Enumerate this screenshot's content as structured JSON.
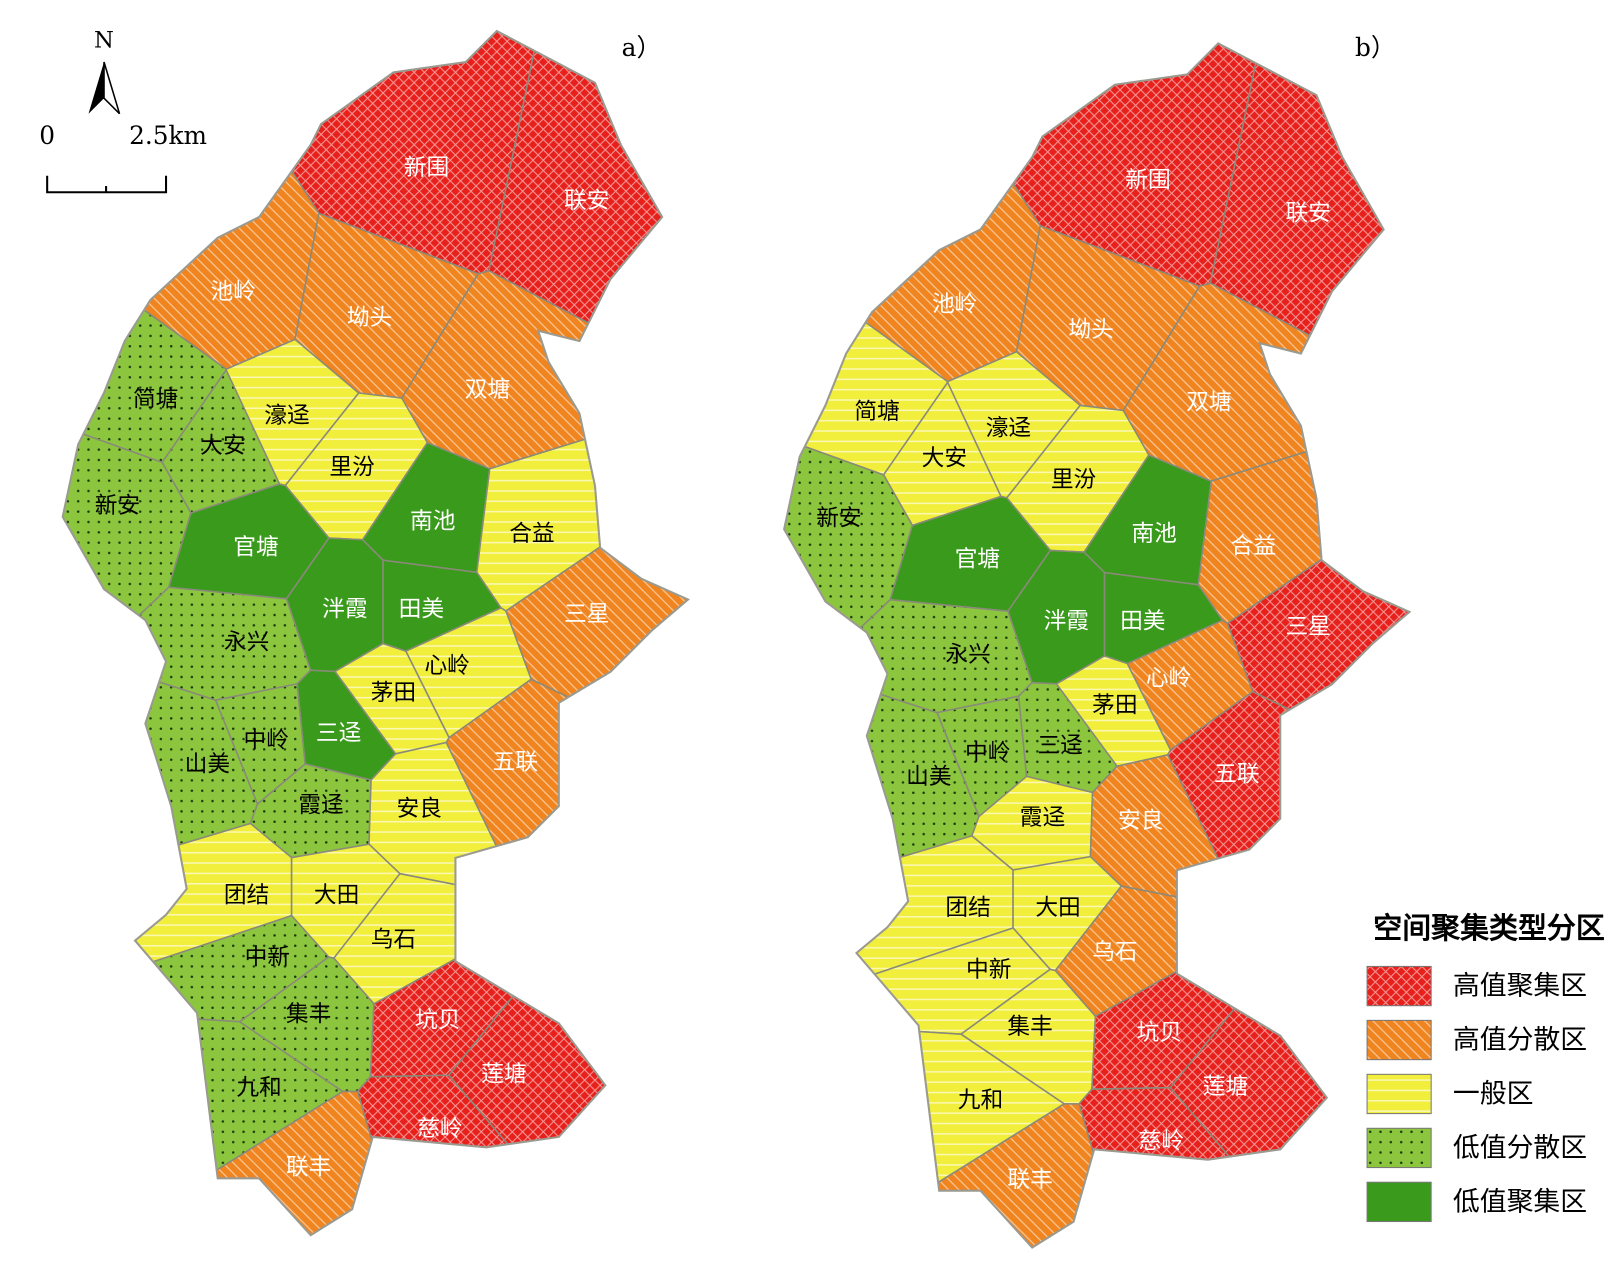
{
  "north": "N",
  "scale": {
    "start": "0",
    "end": "2.5km"
  },
  "panels": [
    {
      "label": "a）",
      "regions": [
        {
          "name": "新围",
          "zone": "高值聚集区"
        },
        {
          "name": "联安",
          "zone": "高值聚集区"
        },
        {
          "name": "池岭",
          "zone": "高值分散区"
        },
        {
          "name": "坳头",
          "zone": "高值分散区"
        },
        {
          "name": "双塘",
          "zone": "高值分散区"
        },
        {
          "name": "简塘",
          "zone": "低值分散区"
        },
        {
          "name": "濠迳",
          "zone": "一般区"
        },
        {
          "name": "大安",
          "zone": "低值分散区"
        },
        {
          "name": "里汾",
          "zone": "一般区"
        },
        {
          "name": "新安",
          "zone": "低值分散区"
        },
        {
          "name": "官塘",
          "zone": "低值聚集区"
        },
        {
          "name": "南池",
          "zone": "低值聚集区"
        },
        {
          "name": "合益",
          "zone": "一般区"
        },
        {
          "name": "泮霞",
          "zone": "低值聚集区"
        },
        {
          "name": "田美",
          "zone": "低值聚集区"
        },
        {
          "name": "三星",
          "zone": "高值分散区"
        },
        {
          "name": "永兴",
          "zone": "低值分散区"
        },
        {
          "name": "心岭",
          "zone": "一般区"
        },
        {
          "name": "茅田",
          "zone": "一般区"
        },
        {
          "name": "三迳",
          "zone": "低值聚集区"
        },
        {
          "name": "中岭",
          "zone": "低值分散区"
        },
        {
          "name": "山美",
          "zone": "低值分散区"
        },
        {
          "name": "五联",
          "zone": "高值分散区"
        },
        {
          "name": "霞迳",
          "zone": "低值分散区"
        },
        {
          "name": "安良",
          "zone": "一般区"
        },
        {
          "name": "团结",
          "zone": "一般区"
        },
        {
          "name": "大田",
          "zone": "一般区"
        },
        {
          "name": "乌石",
          "zone": "一般区"
        },
        {
          "name": "中新",
          "zone": "低值分散区"
        },
        {
          "name": "集丰",
          "zone": "低值分散区"
        },
        {
          "name": "坑贝",
          "zone": "高值聚集区"
        },
        {
          "name": "莲塘",
          "zone": "高值聚集区"
        },
        {
          "name": "九和",
          "zone": "低值分散区"
        },
        {
          "name": "慈岭",
          "zone": "高值聚集区"
        },
        {
          "name": "联丰",
          "zone": "高值分散区"
        }
      ]
    },
    {
      "label": "b）",
      "regions": [
        {
          "name": "新围",
          "zone": "高值聚集区"
        },
        {
          "name": "联安",
          "zone": "高值聚集区"
        },
        {
          "name": "池岭",
          "zone": "高值分散区"
        },
        {
          "name": "坳头",
          "zone": "高值分散区"
        },
        {
          "name": "双塘",
          "zone": "高值分散区"
        },
        {
          "name": "简塘",
          "zone": "一般区"
        },
        {
          "name": "濠迳",
          "zone": "一般区"
        },
        {
          "name": "大安",
          "zone": "一般区"
        },
        {
          "name": "里汾",
          "zone": "一般区"
        },
        {
          "name": "新安",
          "zone": "低值分散区"
        },
        {
          "name": "官塘",
          "zone": "低值聚集区"
        },
        {
          "name": "南池",
          "zone": "低值聚集区"
        },
        {
          "name": "合益",
          "zone": "高值分散区"
        },
        {
          "name": "泮霞",
          "zone": "低值聚集区"
        },
        {
          "name": "田美",
          "zone": "低值聚集区"
        },
        {
          "name": "三星",
          "zone": "高值聚集区"
        },
        {
          "name": "永兴",
          "zone": "低值分散区"
        },
        {
          "name": "心岭",
          "zone": "高值分散区"
        },
        {
          "name": "茅田",
          "zone": "一般区"
        },
        {
          "name": "三迳",
          "zone": "低值分散区"
        },
        {
          "name": "中岭",
          "zone": "低值分散区"
        },
        {
          "name": "山美",
          "zone": "低值分散区"
        },
        {
          "name": "五联",
          "zone": "高值聚集区"
        },
        {
          "name": "霞迳",
          "zone": "一般区"
        },
        {
          "name": "安良",
          "zone": "高值分散区"
        },
        {
          "name": "团结",
          "zone": "一般区"
        },
        {
          "name": "大田",
          "zone": "一般区"
        },
        {
          "name": "乌石",
          "zone": "高值分散区"
        },
        {
          "name": "中新",
          "zone": "一般区"
        },
        {
          "name": "集丰",
          "zone": "一般区"
        },
        {
          "name": "坑贝",
          "zone": "高值聚集区"
        },
        {
          "name": "莲塘",
          "zone": "高值聚集区"
        },
        {
          "name": "九和",
          "zone": "一般区"
        },
        {
          "name": "慈岭",
          "zone": "高值聚集区"
        },
        {
          "name": "联丰",
          "zone": "高值分散区"
        }
      ]
    }
  ],
  "legend": {
    "title": "空间聚集类型分区",
    "items": [
      {
        "label": "高值聚集区",
        "color": "#e8201c"
      },
      {
        "label": "高值分散区",
        "color": "#f0841e"
      },
      {
        "label": "一般区",
        "color": "#f2ee3c"
      },
      {
        "label": "低值分散区",
        "color": "#8cc63f"
      },
      {
        "label": "低值聚集区",
        "color": "#3a9a1c"
      }
    ]
  }
}
